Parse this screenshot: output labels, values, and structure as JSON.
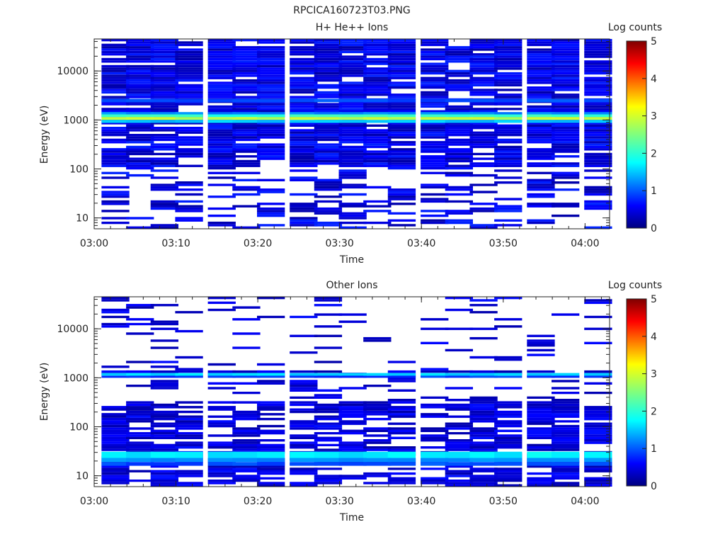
{
  "figure_title": "RPCICA160723T03.PNG",
  "chart_data": [
    {
      "type": "heatmap",
      "title": "H+ He++ Ions",
      "xlabel": "Time",
      "ylabel": "Energy (eV)",
      "xlim": [
        "03:00",
        "04:03"
      ],
      "ylim": [
        6,
        45000
      ],
      "yscale": "log",
      "x_ticks": [
        "03:00",
        "03:10",
        "03:20",
        "03:30",
        "03:40",
        "03:50",
        "04:00"
      ],
      "y_ticks": [
        "10",
        "100",
        "1000",
        "10000"
      ],
      "colorbar": {
        "label": "Log counts",
        "min": 0,
        "max": 5,
        "ticks": [
          "0",
          "1",
          "2",
          "3",
          "4",
          "5"
        ]
      },
      "time_bins": [
        "03:01",
        "03:04",
        "03:07",
        "03:10",
        "03:14",
        "03:17",
        "03:20",
        "03:24",
        "03:27",
        "03:30",
        "03:33",
        "03:36",
        "03:40",
        "03:43",
        "03:46",
        "03:49",
        "03:53",
        "03:56",
        "04:00"
      ],
      "bands": [
        {
          "e_lo": 1000,
          "e_hi": 1150,
          "level": 2.8,
          "note": "persistent band"
        },
        {
          "e_lo": 1150,
          "e_hi": 1300,
          "level": 2.1
        },
        {
          "e_lo": 870,
          "e_hi": 1000,
          "level": 1.6
        },
        {
          "e_lo": 1300,
          "e_hi": 1450,
          "level": 1.3
        },
        {
          "e_lo": 2300,
          "e_hi": 2700,
          "level": 1.0
        }
      ],
      "background": {
        "e_lo": 6,
        "e_hi": 45000,
        "level_range": [
          0.2,
          0.8
        ],
        "gaps": "sparse below 100 eV"
      }
    },
    {
      "type": "heatmap",
      "title": "Other Ions",
      "xlabel": "Time",
      "ylabel": "Energy (eV)",
      "xlim": [
        "03:00",
        "04:03"
      ],
      "ylim": [
        6,
        45000
      ],
      "yscale": "log",
      "x_ticks": [
        "03:00",
        "03:10",
        "03:20",
        "03:30",
        "03:40",
        "03:50",
        "04:00"
      ],
      "y_ticks": [
        "10",
        "100",
        "1000",
        "10000"
      ],
      "colorbar": {
        "label": "Log counts",
        "min": 0,
        "max": 5,
        "ticks": [
          "0",
          "1",
          "2",
          "3",
          "4",
          "5"
        ]
      },
      "time_bins": [
        "03:01",
        "03:04",
        "03:07",
        "03:10",
        "03:14",
        "03:17",
        "03:20",
        "03:24",
        "03:27",
        "03:30",
        "03:33",
        "03:36",
        "03:40",
        "03:43",
        "03:46",
        "03:49",
        "03:53",
        "03:56",
        "04:00"
      ],
      "bands": [
        {
          "e_lo": 1100,
          "e_hi": 1250,
          "level": 1.7,
          "note": "persistent band"
        },
        {
          "e_lo": 1000,
          "e_hi": 1100,
          "level": 0.9
        },
        {
          "e_lo": 23,
          "e_hi": 31,
          "level": 1.8
        },
        {
          "e_lo": 19,
          "e_hi": 23,
          "level": 1.3
        },
        {
          "e_lo": 16,
          "e_hi": 19,
          "level": 1.0
        }
      ],
      "background": {
        "e_lo": 6,
        "e_hi": 45000,
        "level_range": [
          0.2,
          0.7
        ],
        "gaps": "sparse above 300 eV"
      }
    }
  ]
}
